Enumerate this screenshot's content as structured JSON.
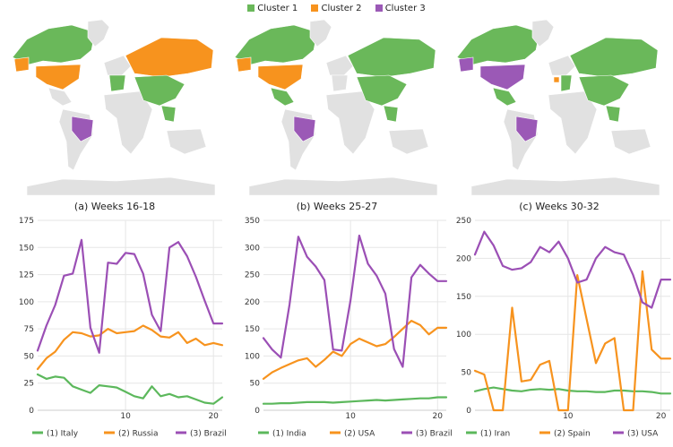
{
  "legend": {
    "items": [
      {
        "label": "Cluster 1",
        "color": "#6ab85a"
      },
      {
        "label": "Cluster 2",
        "color": "#f7931e"
      },
      {
        "label": "Cluster 3",
        "color": "#9b59b6"
      }
    ]
  },
  "maps": [
    {
      "caption": "(a) Weeks 16-18"
    },
    {
      "caption": "(b) Weeks 25-27"
    },
    {
      "caption": "(c) Weeks 30-32"
    }
  ],
  "chart_data": [
    {
      "type": "line",
      "ylim": [
        0,
        175
      ],
      "yticks": [
        0,
        25,
        50,
        75,
        100,
        125,
        150,
        175
      ],
      "xlim": [
        0,
        21
      ],
      "xticks": [
        10,
        20
      ],
      "x": [
        0,
        1,
        2,
        3,
        4,
        5,
        6,
        7,
        8,
        9,
        10,
        11,
        12,
        13,
        14,
        15,
        16,
        17,
        18,
        19,
        20,
        21
      ],
      "series": [
        {
          "name": "(1) Italy",
          "color": "#5cb85c",
          "values": [
            33,
            29,
            31,
            30,
            22,
            19,
            16,
            23,
            22,
            21,
            17,
            13,
            11,
            22,
            13,
            15,
            12,
            13,
            10,
            7,
            6,
            12
          ]
        },
        {
          "name": "(2) Russia",
          "color": "#f7931e",
          "values": [
            38,
            48,
            54,
            65,
            72,
            71,
            68,
            69,
            75,
            71,
            72,
            73,
            78,
            74,
            68,
            67,
            72,
            62,
            66,
            60,
            62,
            60
          ]
        },
        {
          "name": "(3) Brazil",
          "color": "#9b4fb5",
          "values": [
            55,
            78,
            97,
            124,
            126,
            157,
            76,
            53,
            136,
            135,
            145,
            144,
            126,
            88,
            73,
            150,
            155,
            142,
            123,
            101,
            80,
            80
          ]
        }
      ]
    },
    {
      "type": "line",
      "ylim": [
        0,
        350
      ],
      "yticks": [
        0,
        50,
        100,
        150,
        200,
        250,
        300,
        350
      ],
      "xlim": [
        0,
        21
      ],
      "xticks": [
        10,
        20
      ],
      "x": [
        0,
        1,
        2,
        3,
        4,
        5,
        6,
        7,
        8,
        9,
        10,
        11,
        12,
        13,
        14,
        15,
        16,
        17,
        18,
        19,
        20,
        21
      ],
      "series": [
        {
          "name": "(1) India",
          "color": "#5cb85c",
          "values": [
            12,
            12,
            13,
            13,
            14,
            15,
            15,
            15,
            14,
            15,
            16,
            17,
            18,
            19,
            18,
            19,
            20,
            21,
            22,
            22,
            24,
            24
          ]
        },
        {
          "name": "(2) USA",
          "color": "#f7931e",
          "values": [
            58,
            70,
            78,
            85,
            92,
            96,
            80,
            93,
            108,
            100,
            122,
            132,
            125,
            118,
            122,
            135,
            150,
            165,
            157,
            140,
            152,
            152
          ]
        },
        {
          "name": "(3) Brazil",
          "color": "#9b4fb5",
          "values": [
            133,
            112,
            97,
            195,
            320,
            283,
            265,
            240,
            112,
            110,
            202,
            322,
            270,
            248,
            215,
            113,
            80,
            245,
            268,
            252,
            238,
            238
          ]
        }
      ]
    },
    {
      "type": "line",
      "ylim": [
        0,
        250
      ],
      "yticks": [
        0,
        50,
        100,
        150,
        200,
        250
      ],
      "xlim": [
        0,
        21
      ],
      "xticks": [
        10,
        20
      ],
      "x": [
        0,
        1,
        2,
        3,
        4,
        5,
        6,
        7,
        8,
        9,
        10,
        11,
        12,
        13,
        14,
        15,
        16,
        17,
        18,
        19,
        20,
        21
      ],
      "series": [
        {
          "name": "(1) Iran",
          "color": "#5cb85c",
          "values": [
            25,
            28,
            30,
            28,
            26,
            25,
            27,
            28,
            27,
            28,
            26,
            25,
            25,
            24,
            24,
            26,
            26,
            25,
            25,
            24,
            22,
            22
          ]
        },
        {
          "name": "(2) Spain",
          "color": "#f7931e",
          "values": [
            52,
            47,
            0,
            0,
            135,
            38,
            40,
            60,
            65,
            0,
            0,
            178,
            120,
            62,
            88,
            95,
            0,
            0,
            183,
            80,
            68,
            68
          ]
        },
        {
          "name": "(3) USA",
          "color": "#9b4fb5",
          "values": [
            205,
            235,
            217,
            190,
            185,
            187,
            195,
            215,
            208,
            222,
            200,
            168,
            172,
            200,
            215,
            208,
            205,
            178,
            142,
            135,
            172,
            172
          ]
        }
      ]
    }
  ]
}
